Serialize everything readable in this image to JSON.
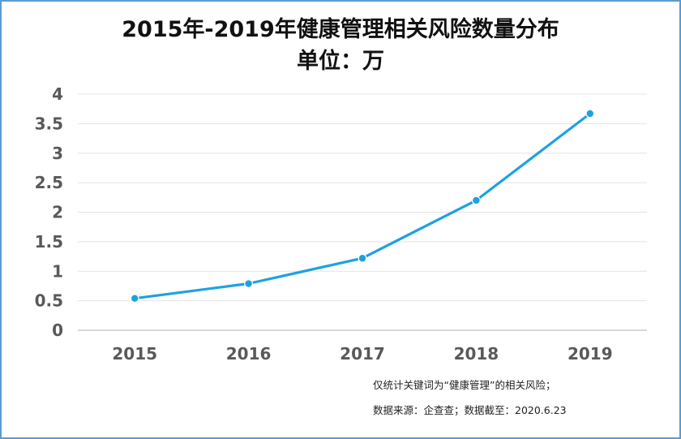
{
  "chart_data": {
    "type": "line",
    "title": "2015年-2019年健康管理相关风险数量分布",
    "subtitle": "单位：万",
    "categories": [
      "2015",
      "2016",
      "2017",
      "2018",
      "2019"
    ],
    "series": [
      {
        "values": [
          0.54,
          0.79,
          1.22,
          2.2,
          3.67
        ]
      }
    ],
    "yticks": [
      "0",
      "0.5",
      "1",
      "1.5",
      "2",
      "2.5",
      "3",
      "3.5",
      "4"
    ],
    "ylim": [
      0,
      4
    ],
    "grid": true,
    "line_color": "#1ea1e0"
  },
  "footnotes": [
    "仅统计关键词为“健康管理”的相关风险；",
    "数据来源：企查查；数据截至：2020.6.23"
  ]
}
